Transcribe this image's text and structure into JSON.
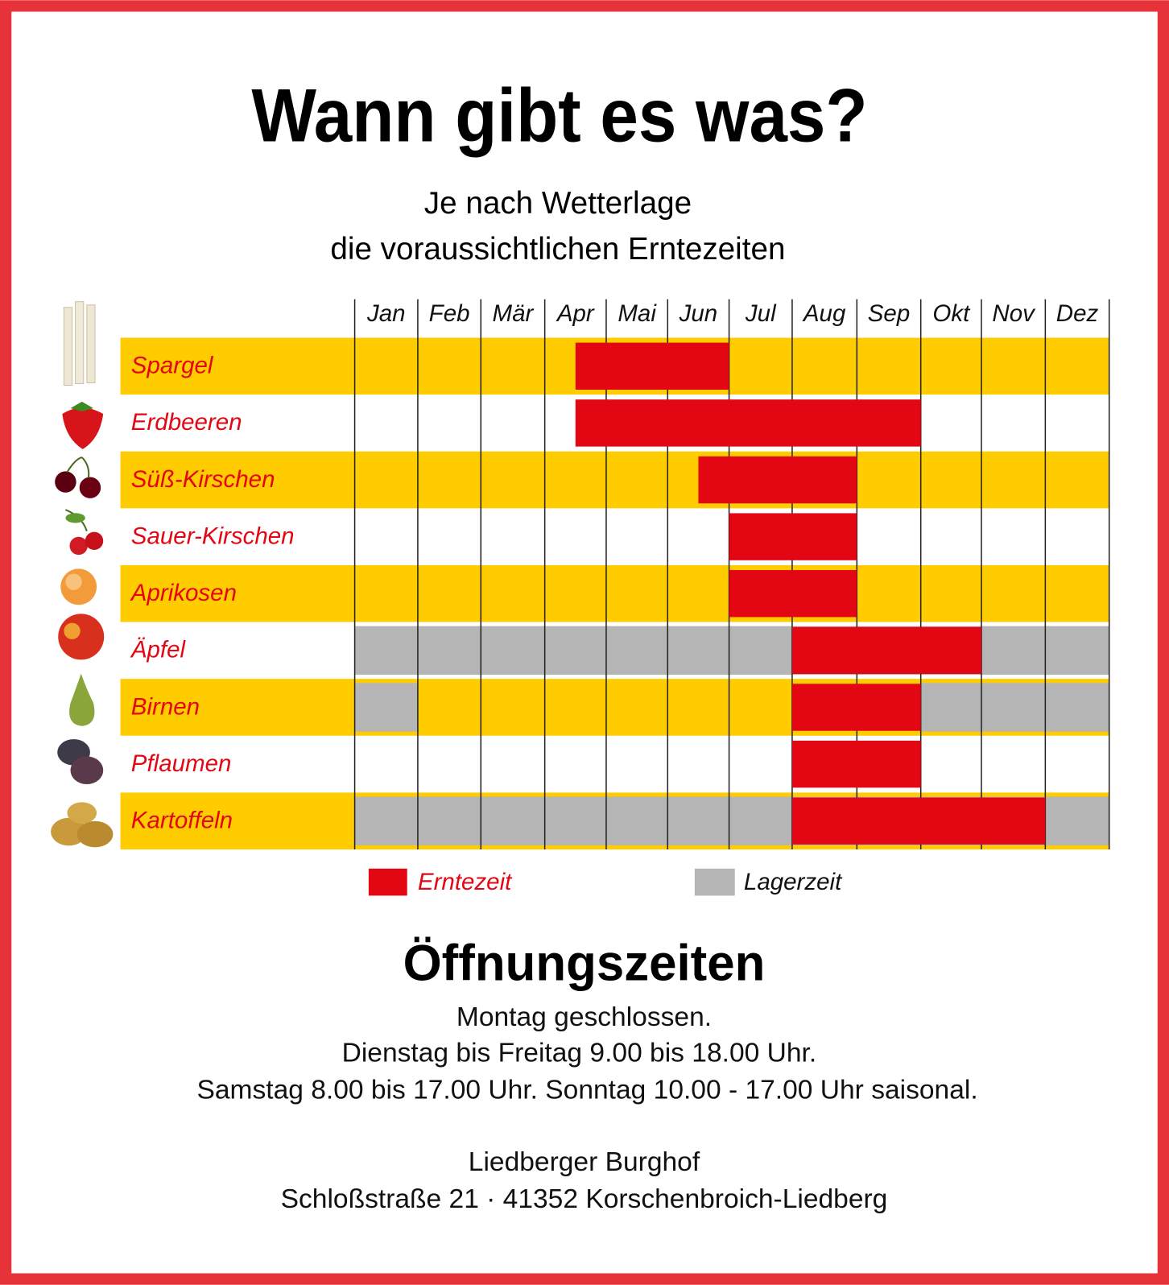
{
  "header": {
    "title": "Wann gibt es was?",
    "subtitle": [
      "Je nach Wetterlage",
      "die voraussichtlichen Erntezeiten"
    ]
  },
  "calendar": {
    "months": [
      "Jan",
      "Feb",
      "Mär",
      "Apr",
      "Mai",
      "Jun",
      "Jul",
      "Aug",
      "Sep",
      "Okt",
      "Nov",
      "Dez"
    ],
    "band_color": "#ffcc00",
    "harvest_color": "#e30613",
    "storage_color": "#b5b5b5",
    "rows": [
      {
        "name": "Spargel",
        "harvest": [
          3.5,
          6
        ],
        "storage": []
      },
      {
        "name": "Erdbeeren",
        "harvest": [
          3.5,
          9
        ],
        "storage": []
      },
      {
        "name": "Süß-Kirschen",
        "harvest": [
          5.5,
          8
        ],
        "storage": []
      },
      {
        "name": "Sauer-Kirschen",
        "harvest": [
          6,
          8
        ],
        "storage": []
      },
      {
        "name": "Aprikosen",
        "harvest": [
          6,
          8
        ],
        "storage": []
      },
      {
        "name": "Äpfel",
        "harvest": [
          7,
          10
        ],
        "storage": [
          [
            0,
            12
          ]
        ]
      },
      {
        "name": "Birnen",
        "harvest": [
          7,
          9
        ],
        "storage": [
          [
            0,
            1
          ],
          [
            9,
            12
          ]
        ]
      },
      {
        "name": "Pflaumen",
        "harvest": [
          7,
          9
        ],
        "storage": []
      },
      {
        "name": "Kartoffeln",
        "harvest": [
          7,
          11
        ],
        "storage": [
          [
            0,
            12
          ]
        ]
      }
    ],
    "legend": {
      "harvest": "Erntezeit",
      "storage": "Lagerzeit"
    }
  },
  "opening": {
    "title": "Öffnungszeiten",
    "lines": [
      "Montag geschlossen.",
      "Dienstag bis Freitag 9.00 bis 18.00 Uhr.",
      "Samstag 8.00 bis 17.00 Uhr. Sonntag 10.00 - 17.00 Uhr saisonal."
    ]
  },
  "address": {
    "name": "Liedberger Burghof",
    "street": "Schloßstraße 21 · 41352 Korschenbroich-Liedberg"
  }
}
